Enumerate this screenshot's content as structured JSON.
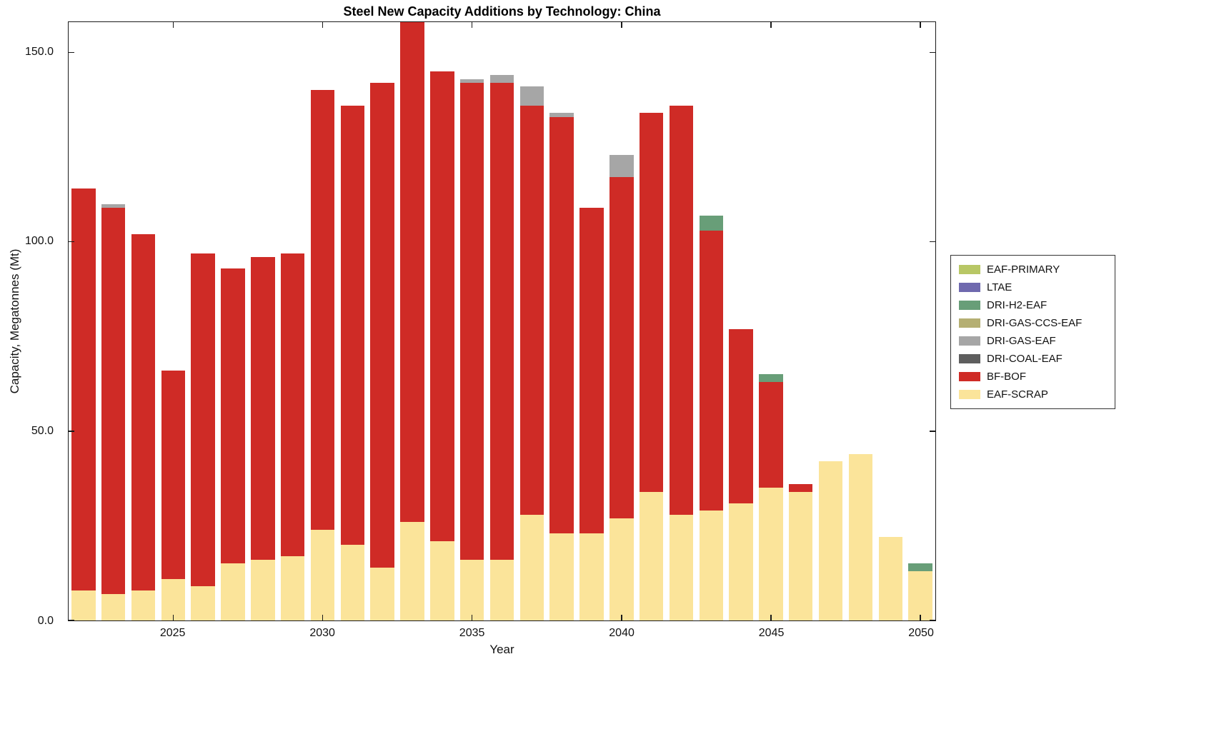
{
  "title": "Steel New Capacity Additions by Technology: China",
  "chart_data": {
    "type": "bar",
    "stacked": true,
    "title": "Steel New Capacity Additions by Technology: China",
    "xlabel": "Year",
    "ylabel": "Capacity, Megatonnes (Mt)",
    "ylim": [
      0,
      158
    ],
    "grid": false,
    "yticks": [
      {
        "value": 0,
        "label": "0.0"
      },
      {
        "value": 50,
        "label": "50.0"
      },
      {
        "value": 100,
        "label": "100.0"
      },
      {
        "value": 150,
        "label": "150.0"
      }
    ],
    "xticks": [
      2025,
      2030,
      2035,
      2040,
      2045,
      2050
    ],
    "years": [
      2022,
      2023,
      2024,
      2025,
      2026,
      2027,
      2028,
      2029,
      2030,
      2031,
      2032,
      2033,
      2034,
      2035,
      2036,
      2037,
      2038,
      2039,
      2040,
      2041,
      2042,
      2043,
      2044,
      2045,
      2046,
      2047,
      2048,
      2049,
      2050
    ],
    "series": [
      {
        "name": "EAF-SCRAP",
        "color": "#FBE49A",
        "values": [
          8,
          7,
          8,
          11,
          9,
          15,
          16,
          17,
          24,
          20,
          14,
          26,
          21,
          16,
          16,
          28,
          23,
          23,
          27,
          34,
          28,
          29,
          31,
          35,
          34,
          42,
          44,
          22,
          13
        ]
      },
      {
        "name": "BF-BOF",
        "color": "#CF2B26",
        "values": [
          106,
          102,
          94,
          55,
          88,
          78,
          80,
          80,
          116,
          116,
          128,
          132,
          124,
          126,
          126,
          108,
          110,
          86,
          90,
          100,
          108,
          74,
          46,
          28,
          2,
          0,
          0,
          0,
          0
        ]
      },
      {
        "name": "DRI-COAL-EAF",
        "color": "#5E5E5E",
        "values": [
          0,
          0,
          0,
          0,
          0,
          0,
          0,
          0,
          0,
          0,
          0,
          0,
          0,
          0,
          0,
          0,
          0,
          0,
          0,
          0,
          0,
          0,
          0,
          0,
          0,
          0,
          0,
          0,
          0
        ]
      },
      {
        "name": "DRI-GAS-EAF",
        "color": "#A6A6A6",
        "values": [
          0,
          1,
          0,
          0,
          0,
          0,
          0,
          0,
          0,
          0,
          0,
          0,
          0,
          1,
          2,
          5,
          1,
          0,
          6,
          0,
          0,
          0,
          0,
          0,
          0,
          0,
          0,
          0,
          0
        ]
      },
      {
        "name": "DRI-GAS-CCS-EAF",
        "color": "#B5AF73",
        "values": [
          0,
          0,
          0,
          0,
          0,
          0,
          0,
          0,
          0,
          0,
          0,
          0,
          0,
          0,
          0,
          0,
          0,
          0,
          0,
          0,
          0,
          0,
          0,
          0,
          0,
          0,
          0,
          0,
          0
        ]
      },
      {
        "name": "DRI-H2-EAF",
        "color": "#689E78",
        "values": [
          0,
          0,
          0,
          0,
          0,
          0,
          0,
          0,
          0,
          0,
          0,
          0,
          0,
          0,
          0,
          0,
          0,
          0,
          0,
          0,
          0,
          4,
          0,
          2,
          0,
          0,
          0,
          0,
          2
        ]
      },
      {
        "name": "LTAE",
        "color": "#6F69AE",
        "values": [
          0,
          0,
          0,
          0,
          0,
          0,
          0,
          0,
          0,
          0,
          0,
          0,
          0,
          0,
          0,
          0,
          0,
          0,
          0,
          0,
          0,
          0,
          0,
          0,
          0,
          0,
          0,
          0,
          0
        ]
      },
      {
        "name": "EAF-PRIMARY",
        "color": "#B8C765",
        "values": [
          0,
          0,
          0,
          0,
          0,
          0,
          0,
          0,
          0,
          0,
          0,
          0,
          0,
          0,
          0,
          0,
          0,
          0,
          0,
          0,
          0,
          0,
          0,
          0,
          0,
          0,
          0,
          0,
          0
        ]
      }
    ],
    "legend": {
      "position": "right-outside",
      "entries": [
        {
          "label": "EAF-PRIMARY",
          "color": "#B8C765"
        },
        {
          "label": "LTAE",
          "color": "#6F69AE"
        },
        {
          "label": "DRI-H2-EAF",
          "color": "#689E78"
        },
        {
          "label": "DRI-GAS-CCS-EAF",
          "color": "#B5AF73"
        },
        {
          "label": "DRI-GAS-EAF",
          "color": "#A6A6A6"
        },
        {
          "label": "DRI-COAL-EAF",
          "color": "#5E5E5E"
        },
        {
          "label": "BF-BOF",
          "color": "#CF2B26"
        },
        {
          "label": "EAF-SCRAP",
          "color": "#FBE49A"
        }
      ]
    }
  }
}
